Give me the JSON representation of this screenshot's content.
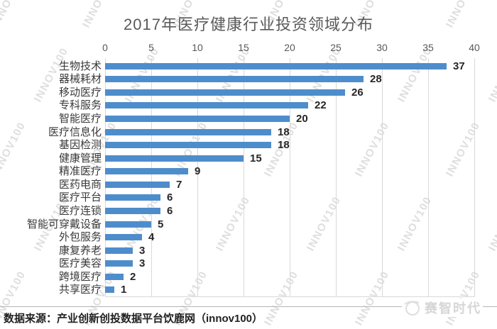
{
  "chart": {
    "title": "2017年医疗健康行业投资领域分布"
  },
  "chart_data": {
    "type": "bar",
    "orientation": "horizontal",
    "title": "2017年医疗健康行业投资领域分布",
    "categories": [
      "生物技术",
      "器械耗材",
      "移动医疗",
      "专科服务",
      "智能医疗",
      "医疗信息化",
      "基因检测",
      "健康管理",
      "精准医疗",
      "医药电商",
      "医疗平台",
      "医疗连锁",
      "智能可穿戴设备",
      "外包服务",
      "康复养老",
      "医疗美容",
      "跨境医疗",
      "共享医疗"
    ],
    "values": [
      37,
      28,
      26,
      22,
      20,
      18,
      18,
      15,
      9,
      7,
      6,
      6,
      5,
      4,
      3,
      3,
      2,
      1
    ],
    "x_ticks": [
      0,
      5,
      10,
      15,
      20,
      25,
      30,
      35,
      40
    ],
    "xlim": [
      0,
      40
    ],
    "xlabel": "",
    "ylabel": "",
    "grid": "vertical-gridlines",
    "legend": "none",
    "value_labels": true,
    "axis_position": "top"
  },
  "footer": {
    "source": "数据来源：产业创新创投数据平台饮鹿网（innov100）",
    "logo_text": "赛智时代"
  },
  "watermark": {
    "text": "INNOV100"
  },
  "colors": {
    "bar": "#4e8dcc",
    "title": "#595959",
    "axis_label": "#595959",
    "value_label": "#262626",
    "gridline": "#d9d9d9",
    "watermark": "#d4d4d4",
    "separator": "#b5b5b5",
    "logo": "#d6d6d6"
  }
}
